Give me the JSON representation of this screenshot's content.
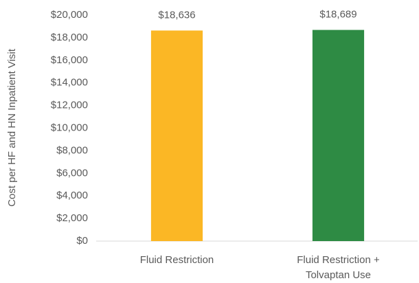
{
  "chart_data": {
    "type": "bar",
    "y_label": "Cost per HF and HN Inpatient Visit",
    "categories": [
      "Fluid Restriction",
      "Fluid Restriction + Tolvaptan Use"
    ],
    "values": [
      18636,
      18689
    ],
    "value_labels": [
      "$18,636",
      "$18,689"
    ],
    "colors": [
      "#FBB725",
      "#2E8B44"
    ],
    "ylim": [
      0,
      20000
    ],
    "yticks": [
      {
        "value": 0,
        "label": "$0"
      },
      {
        "value": 2000,
        "label": "$2,000"
      },
      {
        "value": 4000,
        "label": "$4,000"
      },
      {
        "value": 6000,
        "label": "$6,000"
      },
      {
        "value": 8000,
        "label": "$8,000"
      },
      {
        "value": 10000,
        "label": "$10,000"
      },
      {
        "value": 12000,
        "label": "$12,000"
      },
      {
        "value": 14000,
        "label": "$14,000"
      },
      {
        "value": 16000,
        "label": "$16,000"
      },
      {
        "value": 18000,
        "label": "$18,000"
      },
      {
        "value": 20000,
        "label": "$20,000"
      }
    ],
    "grid": false
  }
}
